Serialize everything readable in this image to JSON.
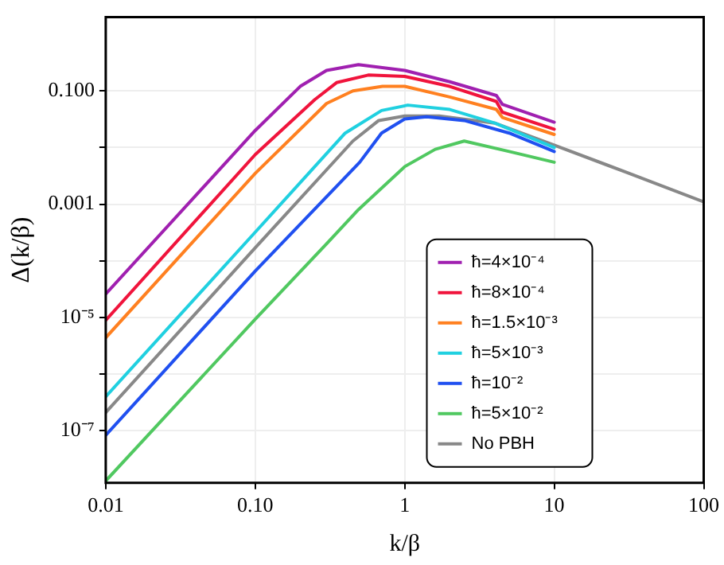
{
  "chart_data": {
    "type": "line",
    "xlabel": "k/β",
    "ylabel": "Δ(k/β)",
    "log": "xy",
    "grid": true,
    "legend": "bottom right",
    "marker": "none",
    "line_style": "solid",
    "xlim": [
      0.01,
      100
    ],
    "xticks": [
      {
        "value": 0.01,
        "label": "0.01"
      },
      {
        "value": 0.1,
        "label": "0.10"
      },
      1,
      10,
      100
    ],
    "ylim": [
      1.2e-08,
      2
    ],
    "yticks": [
      {
        "value": 0.1,
        "label": "0.100"
      },
      {
        "value": 0.01,
        "label": null
      },
      {
        "value": 0.001,
        "label": "0.001"
      },
      {
        "value": 0.0001,
        "label": null
      },
      {
        "value": 1e-05,
        "label": "10⁻⁵"
      },
      {
        "value": 1e-06,
        "label": null
      },
      {
        "value": 1e-07,
        "label": "10⁻⁷"
      }
    ],
    "series": [
      {
        "name": "ħ=4×10⁻⁴",
        "color": "#a020b0",
        "x": [
          0.01,
          0.1,
          0.2,
          0.3,
          0.49,
          1,
          2,
          4.1,
          4.5,
          10
        ],
        "values": [
          2.6e-05,
          0.02,
          0.12,
          0.23,
          0.29,
          0.23,
          0.145,
          0.083,
          0.058,
          0.028
        ]
      },
      {
        "name": "ħ=8×10⁻⁴",
        "color": "#f0143c",
        "x": [
          0.01,
          0.1,
          0.25,
          0.35,
          0.57,
          1,
          2,
          4.1,
          4.5,
          10
        ],
        "values": [
          8.9e-06,
          0.0075,
          0.07,
          0.14,
          0.19,
          0.18,
          0.12,
          0.065,
          0.042,
          0.021
        ]
      },
      {
        "name": "ħ=1.5×10⁻³",
        "color": "#ff8020",
        "x": [
          0.01,
          0.1,
          0.3,
          0.45,
          0.71,
          1,
          2,
          4.1,
          4.5,
          10
        ],
        "values": [
          4.4e-06,
          0.0035,
          0.06,
          0.1,
          0.12,
          0.12,
          0.078,
          0.047,
          0.034,
          0.017
        ]
      },
      {
        "name": "ħ=5×10⁻³",
        "color": "#20d0e0",
        "x": [
          0.01,
          0.1,
          0.4,
          0.7,
          1.05,
          2,
          4,
          10
        ],
        "values": [
          4e-07,
          0.00032,
          0.018,
          0.045,
          0.056,
          0.047,
          0.027,
          0.01
        ]
      },
      {
        "name": "ħ=10⁻²",
        "color": "#2050f0",
        "x": [
          0.01,
          0.1,
          0.5,
          0.7,
          1,
          1.4,
          2.5,
          5,
          10
        ],
        "values": [
          8.3e-08,
          6.6e-05,
          0.0055,
          0.018,
          0.032,
          0.035,
          0.03,
          0.018,
          0.0085
        ]
      },
      {
        "name": "ħ=5×10⁻²",
        "color": "#50c860",
        "x": [
          0.01,
          0.1,
          0.3,
          0.49,
          1,
          1.6,
          2.5,
          5,
          10
        ],
        "values": [
          1.3e-08,
          9.3e-06,
          0.0002,
          0.0008,
          0.0046,
          0.0093,
          0.013,
          0.0085,
          0.0055
        ]
      },
      {
        "name": "No PBH",
        "color": "#888888",
        "x": [
          0.01,
          0.1,
          0.45,
          0.67,
          1,
          1.7,
          4,
          10,
          30,
          100
        ],
        "values": [
          2.1e-07,
          0.00017,
          0.013,
          0.03,
          0.036,
          0.036,
          0.027,
          0.011,
          0.0037,
          0.0011
        ]
      }
    ]
  }
}
